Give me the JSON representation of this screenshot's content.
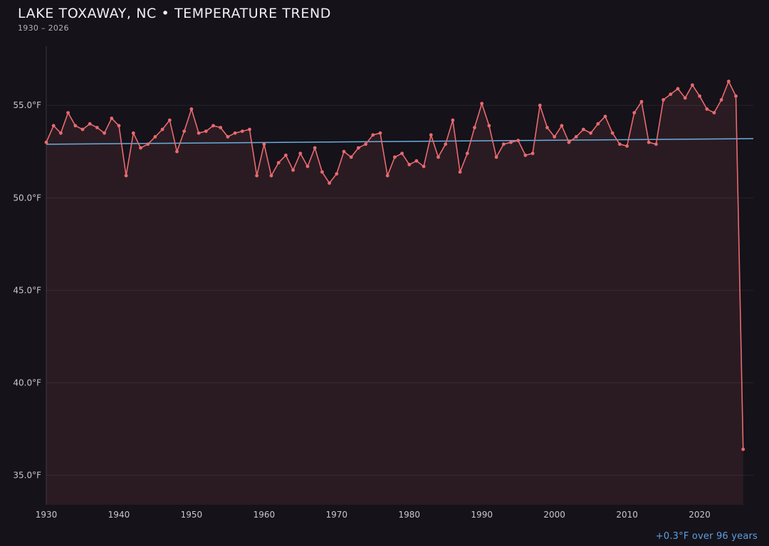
{
  "chart_data": {
    "type": "line",
    "title": "LAKE TOXAWAY, NC • TEMPERATURE TREND",
    "subtitle": "1930 – 2026",
    "annotation": "+0.3°F over 96 years",
    "xlabel": "",
    "ylabel": "",
    "xlim": [
      1930,
      2027.4
    ],
    "ylim": [
      33.4,
      58.2
    ],
    "xticks": [
      1930,
      1940,
      1950,
      1960,
      1970,
      1980,
      1990,
      2000,
      2010,
      2020
    ],
    "ytick_values": [
      55,
      50,
      45,
      40,
      35
    ],
    "ytick_labels": [
      "55.0°F",
      "50.0°F",
      "45.0°F",
      "40.0°F",
      "35.0°F"
    ],
    "grid": true,
    "legend": "none",
    "years": [
      1930,
      1931,
      1932,
      1933,
      1934,
      1935,
      1936,
      1937,
      1938,
      1939,
      1940,
      1941,
      1942,
      1943,
      1944,
      1945,
      1946,
      1947,
      1948,
      1949,
      1950,
      1951,
      1952,
      1953,
      1954,
      1955,
      1956,
      1957,
      1958,
      1959,
      1960,
      1961,
      1962,
      1963,
      1964,
      1965,
      1966,
      1967,
      1968,
      1969,
      1970,
      1971,
      1972,
      1973,
      1974,
      1975,
      1976,
      1977,
      1978,
      1979,
      1980,
      1981,
      1982,
      1983,
      1984,
      1985,
      1986,
      1987,
      1988,
      1989,
      1990,
      1991,
      1992,
      1993,
      1994,
      1995,
      1996,
      1997,
      1998,
      1999,
      2000,
      2001,
      2002,
      2003,
      2004,
      2005,
      2006,
      2007,
      2008,
      2009,
      2010,
      2011,
      2012,
      2013,
      2014,
      2015,
      2016,
      2017,
      2018,
      2019,
      2020,
      2021,
      2022,
      2023,
      2024,
      2025,
      2026
    ],
    "series": [
      {
        "name": "annual-mean-temperature-f",
        "color": "#e96a6e",
        "fill": "rgba(233,106,110,0.10)",
        "values": [
          53.0,
          53.9,
          53.5,
          54.6,
          53.9,
          53.7,
          54.0,
          53.8,
          53.5,
          54.3,
          53.9,
          51.2,
          53.5,
          52.7,
          52.9,
          53.3,
          53.7,
          54.2,
          52.5,
          53.6,
          54.8,
          53.5,
          53.6,
          53.9,
          53.8,
          53.3,
          53.5,
          53.6,
          53.7,
          51.2,
          52.9,
          51.2,
          51.9,
          52.3,
          51.5,
          52.4,
          51.7,
          52.7,
          51.4,
          50.8,
          51.3,
          52.5,
          52.2,
          52.7,
          52.9,
          53.4,
          53.5,
          51.2,
          52.2,
          52.4,
          51.8,
          52.0,
          51.7,
          53.4,
          52.2,
          52.9,
          54.2,
          51.4,
          52.4,
          53.8,
          55.1,
          53.9,
          52.2,
          52.9,
          53.0,
          53.1,
          52.3,
          52.4,
          55.0,
          53.8,
          53.3,
          53.9,
          53.0,
          53.3,
          53.7,
          53.5,
          54.0,
          54.4,
          53.5,
          52.9,
          52.8,
          54.6,
          55.2,
          53.0,
          52.9,
          55.3,
          55.6,
          55.9,
          55.4,
          56.1,
          55.5,
          54.8,
          54.6,
          55.3,
          56.3,
          55.5,
          36.4
        ]
      }
    ],
    "trendline": {
      "name": "linear-trend",
      "color": "#6aaede",
      "start_value": 52.9,
      "end_value": 53.2
    },
    "style": {
      "background": "#15121a",
      "grid_color": "#27232e",
      "spine_color": "#3a3642",
      "tick_text_color": "#c9c6d0"
    }
  }
}
